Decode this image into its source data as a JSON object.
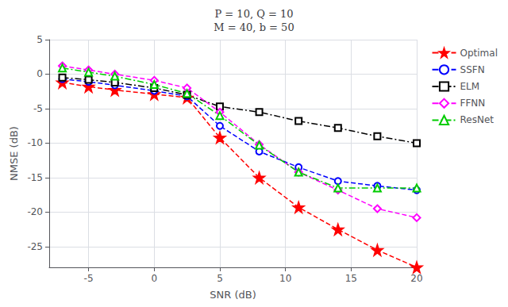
{
  "chart_data": {
    "type": "line",
    "title": "P = 10, Q = 10\nM = 40, b = 50",
    "xlabel": "SNR (dB)",
    "ylabel": "NMSE (dB)",
    "x": [
      -7,
      -5,
      -3,
      0,
      2.5,
      5,
      8,
      11,
      14,
      17,
      20
    ],
    "series": [
      {
        "name": "Optimal",
        "color": "#ff0000",
        "marker": "star",
        "line_style": "dashed",
        "values": [
          -1.2,
          -1.8,
          -2.3,
          -2.9,
          -3.4,
          -9.2,
          -15.0,
          -19.3,
          -22.5,
          -25.5,
          -28.0
        ]
      },
      {
        "name": "SSFN",
        "color": "#0000ff",
        "marker": "circle",
        "line_style": "dashed",
        "values": [
          -0.7,
          -1.1,
          -1.6,
          -2.4,
          -3.2,
          -7.5,
          -11.2,
          -13.5,
          -15.5,
          -16.2,
          -16.8
        ]
      },
      {
        "name": "ELM",
        "color": "#000000",
        "marker": "square",
        "line_style": "dashdot",
        "values": [
          -0.5,
          -0.8,
          -1.2,
          -2.0,
          -3.0,
          -4.7,
          -5.5,
          -6.8,
          -7.8,
          -9.0,
          -10.0
        ]
      },
      {
        "name": "FFNN",
        "color": "#ff00ff",
        "marker": "diamond",
        "line_style": "dashed",
        "values": [
          1.2,
          0.6,
          0.0,
          -0.9,
          -2.0,
          -5.5,
          -10.2,
          -14.2,
          -16.8,
          -19.5,
          -20.8
        ]
      },
      {
        "name": "ResNet",
        "color": "#00cc00",
        "marker": "triangle",
        "line_style": "dashdot",
        "values": [
          0.9,
          0.3,
          -0.3,
          -1.5,
          -2.8,
          -6.0,
          -10.3,
          -14.2,
          -16.5,
          -16.5,
          -16.5
        ]
      }
    ],
    "xlim": [
      -8,
      20
    ],
    "ylim": [
      -28,
      5
    ],
    "xticks": [
      -5,
      0,
      5,
      10,
      15,
      20
    ],
    "yticks": [
      5,
      0,
      -5,
      -10,
      -15,
      -20,
      -25
    ],
    "grid": true,
    "legend": "upper right"
  }
}
